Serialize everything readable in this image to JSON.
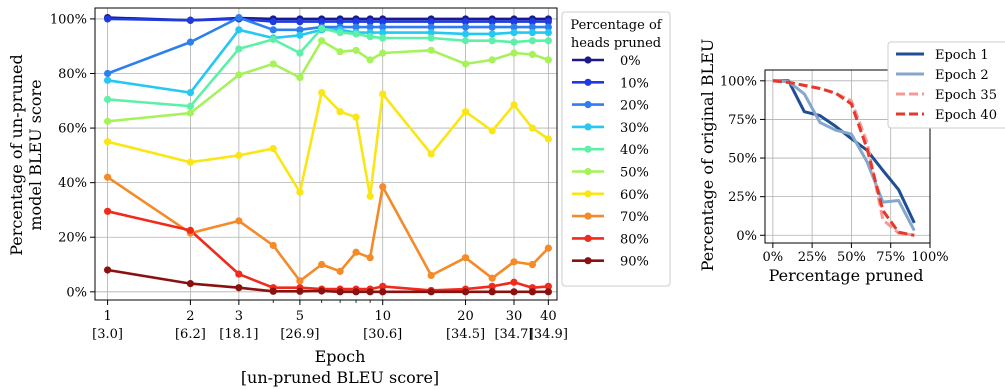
{
  "chart_data": [
    {
      "type": "line",
      "xlabel": "Epoch",
      "xlabel2": "[un-pruned BLEU score]",
      "ylabel_line1": "Percentage of un-pruned",
      "ylabel_line2": "model BLEU  score",
      "xscale": "log",
      "x": [
        1,
        2,
        3,
        4,
        5,
        6,
        7,
        8,
        9,
        10,
        15,
        20,
        25,
        30,
        35,
        40
      ],
      "xticks": [
        1,
        2,
        3,
        5,
        10,
        20,
        30,
        40
      ],
      "xtick_labels": [
        "1",
        "2",
        "3",
        "5",
        "10",
        "20",
        "30",
        "40"
      ],
      "xtick_sublabels": [
        {
          "x": 1,
          "label": "[3.0]"
        },
        {
          "x": 2,
          "label": "[6.2]"
        },
        {
          "x": 3,
          "label": "[18.1]"
        },
        {
          "x": 5,
          "label": "[26.9]"
        },
        {
          "x": 10,
          "label": "[30.6]"
        },
        {
          "x": 20,
          "label": "[34.5]"
        },
        {
          "x": 30,
          "label": "[34.7]"
        },
        {
          "x": 40,
          "label": "[34.9]"
        }
      ],
      "yticks": [
        0,
        20,
        40,
        60,
        80,
        100
      ],
      "ytick_labels": [
        "0%",
        "20%",
        "40%",
        "60%",
        "80%",
        "100%"
      ],
      "ylim": [
        -3,
        104
      ],
      "grid": true,
      "legend_title_line1": "Percentage of",
      "legend_title_line2": "heads pruned",
      "legend_position": "right",
      "series": [
        {
          "name": "0%",
          "color": "#1a1a8c",
          "values": [
            100.5,
            99.5,
            100.3,
            100,
            100,
            100,
            100,
            100,
            100,
            100,
            100,
            100,
            100,
            100,
            100,
            100
          ]
        },
        {
          "name": "10%",
          "color": "#1f3ae0",
          "values": [
            100,
            99.5,
            100,
            99,
            99,
            99,
            99,
            99,
            99,
            99,
            99,
            99,
            99,
            99,
            99,
            99
          ]
        },
        {
          "name": "20%",
          "color": "#2d7ff0",
          "values": [
            80,
            91.5,
            100.5,
            96,
            96,
            97,
            97,
            97,
            97,
            97,
            97,
            97,
            97,
            97,
            97,
            97
          ]
        },
        {
          "name": "30%",
          "color": "#25c8f2",
          "values": [
            77.5,
            73,
            96,
            93,
            94,
            96,
            96,
            95,
            95,
            95,
            95,
            94.5,
            94.5,
            95,
            95,
            95
          ]
        },
        {
          "name": "40%",
          "color": "#5ef0a8",
          "values": [
            70.5,
            68,
            89,
            92.5,
            87.5,
            96.5,
            95,
            94.5,
            93.5,
            93,
            93,
            92,
            92,
            91.5,
            92,
            92
          ]
        },
        {
          "name": "50%",
          "color": "#a6f25a",
          "values": [
            62.5,
            65.5,
            79.5,
            83.5,
            78.5,
            92,
            88,
            88.5,
            85,
            87.5,
            88.5,
            83.5,
            85,
            87.5,
            87,
            85
          ]
        },
        {
          "name": "60%",
          "color": "#fae614",
          "values": [
            55,
            47.5,
            50,
            52.5,
            36.5,
            73,
            66,
            64,
            35,
            72.5,
            50.5,
            66,
            59,
            68.5,
            60,
            56
          ]
        },
        {
          "name": "70%",
          "color": "#f48a28",
          "values": [
            42,
            21.5,
            26,
            17,
            4,
            10,
            7.5,
            14.5,
            12.5,
            38.5,
            6,
            12.5,
            5,
            11,
            10,
            16
          ]
        },
        {
          "name": "80%",
          "color": "#f02a1c",
          "values": [
            29.5,
            22.5,
            6.5,
            1.5,
            1.5,
            1,
            1,
            1,
            1,
            2,
            0.5,
            1,
            2,
            3.5,
            1.5,
            2
          ]
        },
        {
          "name": "90%",
          "color": "#8b1010",
          "values": [
            8,
            3,
            1.5,
            0.2,
            0.2,
            0.3,
            0,
            0,
            0,
            0,
            0,
            0,
            0,
            0,
            0,
            0
          ]
        }
      ]
    },
    {
      "type": "line",
      "xlabel": "Percentage pruned",
      "ylabel": "Percentage of original BLEU",
      "xticks": [
        0,
        25,
        50,
        75,
        100
      ],
      "xtick_labels": [
        "0%",
        "25%",
        "50%",
        "75%",
        "100%"
      ],
      "yticks": [
        0,
        25,
        50,
        75,
        100
      ],
      "ytick_labels": [
        "0%",
        "25%",
        "50%",
        "75%",
        "100%"
      ],
      "xlim": [
        -5,
        100
      ],
      "ylim": [
        -5,
        107
      ],
      "grid": true,
      "legend_position": "top-right",
      "series": [
        {
          "name": "Epoch 1",
          "color": "#1f4e96",
          "dash": "solid",
          "x": [
            0,
            10,
            20,
            30,
            40,
            50,
            60,
            70,
            80,
            90
          ],
          "values": [
            100,
            100,
            80,
            77.5,
            70.5,
            62.5,
            55,
            42,
            29.5,
            8
          ]
        },
        {
          "name": "Epoch 2",
          "color": "#86a7cc",
          "dash": "solid",
          "x": [
            0,
            10,
            20,
            30,
            40,
            50,
            60,
            70,
            80,
            90
          ],
          "values": [
            100,
            99.5,
            91.5,
            73,
            68,
            65.5,
            47.5,
            21.5,
            22.5,
            3
          ]
        },
        {
          "name": "Epoch 35",
          "color": "#f49a94",
          "dash": "dashed",
          "x": [
            0,
            10,
            20,
            30,
            40,
            50,
            60,
            70,
            80,
            90
          ],
          "values": [
            100,
            99,
            97,
            95,
            92,
            87,
            60,
            10,
            1.5,
            0
          ]
        },
        {
          "name": "Epoch 40",
          "color": "#e6382c",
          "dash": "dashed",
          "x": [
            0,
            10,
            20,
            30,
            40,
            50,
            60,
            70,
            80,
            90
          ],
          "values": [
            100,
            99,
            97,
            95,
            92,
            85,
            56,
            16,
            2,
            0
          ]
        }
      ]
    }
  ]
}
